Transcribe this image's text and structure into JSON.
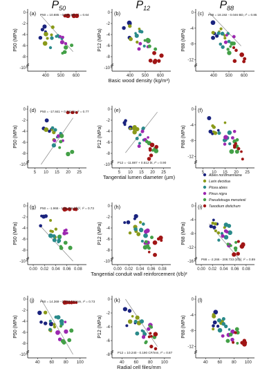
{
  "column_titles": [
    {
      "base": "P",
      "sub": "50"
    },
    {
      "base": "P",
      "sub": "12"
    },
    {
      "base": "P",
      "sub": "88"
    }
  ],
  "legend": [
    {
      "name": "Abies nordmanniana",
      "color": "#1a237e"
    },
    {
      "name": "Larix decidua",
      "color": "#8a9a1a"
    },
    {
      "name": "Picea abies",
      "color": "#2a8a8a"
    },
    {
      "name": "Pinus nigra",
      "color": "#9c27b0"
    },
    {
      "name": "Pseudotsuga menziesii",
      "color": "#43a047"
    },
    {
      "name": "Taxodium distichum",
      "color": "#a01515"
    }
  ],
  "rows": [
    {
      "xlabel": "Basic wood density (kg/m³)",
      "xticks": [
        "400",
        "500",
        "600"
      ],
      "xrange": [
        300,
        650
      ]
    },
    {
      "xlabel": "Tangential lumen diameter (µm)",
      "xticks": [
        "5",
        "10",
        "15",
        "20",
        "25"
      ],
      "xrange": [
        3,
        27
      ]
    },
    {
      "xlabel": "Tangential conduit wall reinforcement (t/b)²",
      "xticks": [
        "0.00",
        "0.02",
        "0.04",
        "0.06",
        "0.08"
      ],
      "xrange": [
        -0.005,
        0.09
      ]
    },
    {
      "xlabel": "Radial cell files/mm",
      "xticks": [
        "40",
        "60",
        "80",
        "100"
      ],
      "xrange": [
        30,
        105
      ]
    }
  ],
  "yticks": [
    "0",
    "-2",
    "-4",
    "-6",
    "-8",
    "-10"
  ],
  "panel_ylabels": [
    "P50 (MPa)",
    "P12 (MPa)",
    "P88 (MPa)"
  ],
  "chart_data": [
    {
      "label": "(a)",
      "type": "scatter",
      "row": 0,
      "col": 0,
      "yrange": [
        -10,
        0
      ],
      "fit": [
        10.885,
        -0.031
      ],
      "eq": "P50 = 10.885 - 0.031 BD, r² = 0.64"
    },
    {
      "label": "(b)",
      "type": "scatter",
      "row": 0,
      "col": 1,
      "yrange": [
        -10,
        0
      ],
      "fit": null,
      "eq": ""
    },
    {
      "label": "(c)",
      "type": "scatter",
      "row": 0,
      "col": 2,
      "yrange": [
        -14,
        0
      ],
      "fit": [
        18.192,
        -0.046
      ],
      "eq": "P88 = 18.192 - 0.046 BD, r² = 0.85"
    },
    {
      "label": "(d)",
      "type": "scatter",
      "row": 1,
      "col": 0,
      "yrange": [
        -10,
        0
      ],
      "fit": [
        -17.841,
        0.732
      ],
      "eq": "P50 = -17.841 + 0.732 bt, r² = 0.77"
    },
    {
      "label": "(e)",
      "type": "scatter",
      "row": 1,
      "col": 1,
      "yrange": [
        -10,
        0
      ],
      "fit": [
        -11.887,
        0.512
      ],
      "eq": "P12 = -11.887 + 0.512 bt, r² = 0.90"
    },
    {
      "label": "(f)",
      "type": "scatter",
      "row": 1,
      "col": 2,
      "yrange": [
        -14,
        0
      ],
      "fit": null,
      "eq": ""
    },
    {
      "label": "(g)",
      "type": "scatter",
      "row": 2,
      "col": 0,
      "yrange": [
        -10,
        0
      ],
      "fit": [
        -1.966,
        -129.418
      ],
      "eq": "P50 = -1.966 - 129.418 (t/b)², r² = 0.73"
    },
    {
      "label": "(h)",
      "type": "scatter",
      "row": 2,
      "col": 1,
      "yrange": [
        -10,
        0
      ],
      "fit": null,
      "eq": ""
    },
    {
      "label": "(i)",
      "type": "scatter",
      "row": 2,
      "col": 2,
      "yrange": [
        -16,
        0
      ],
      "fit": [
        -2.266,
        -208.733
      ],
      "eq": "P88 = -2.266 - 208.733 (t/b)², r² = 0.89"
    },
    {
      "label": "(j)",
      "type": "scatter",
      "row": 3,
      "col": 0,
      "yrange": [
        -10,
        0
      ],
      "fit": [
        14.369,
        -0.279
      ],
      "eq": "P50 = 14.369 - 0.279 CF/mm, r² = 0.73"
    },
    {
      "label": "(k)",
      "type": "scatter",
      "row": 3,
      "col": 1,
      "yrange": [
        -8,
        0
      ],
      "fit": [
        10.24,
        -0.19
      ],
      "eq": "P12 = 10.240 - 0.190 CF/mm, r² = 0.87"
    },
    {
      "label": "(l)",
      "type": "scatter",
      "row": 3,
      "col": 2,
      "yrange": [
        -14,
        0
      ],
      "fit": null,
      "eq": ""
    }
  ]
}
